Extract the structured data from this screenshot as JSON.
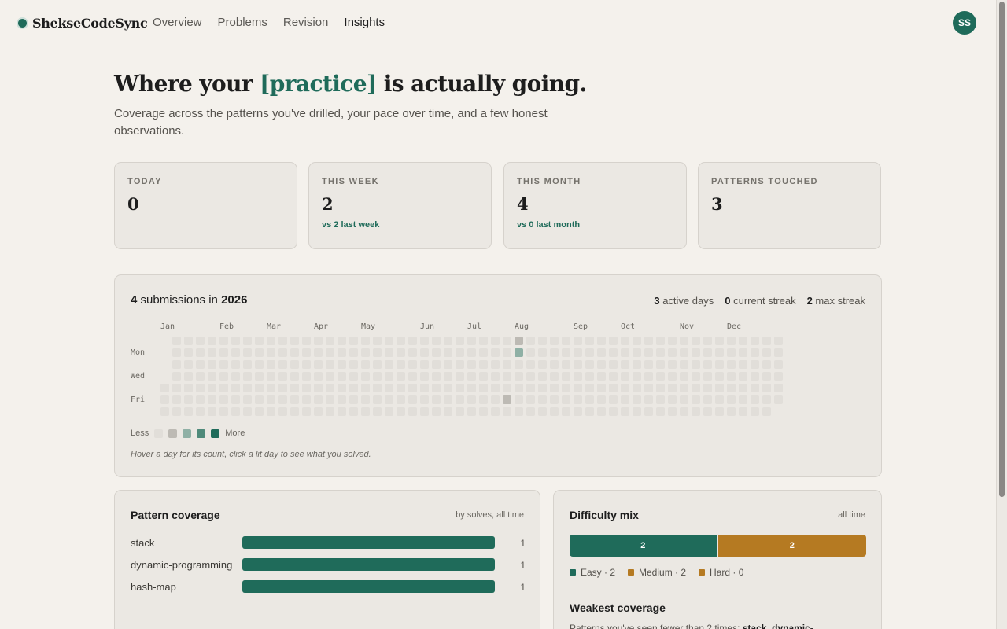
{
  "app": {
    "name": "ShekseCodeSync",
    "avatar_initials": "SS"
  },
  "nav": [
    {
      "label": "Overview",
      "active": false
    },
    {
      "label": "Problems",
      "active": false
    },
    {
      "label": "Revision",
      "active": false
    },
    {
      "label": "Insights",
      "active": true
    }
  ],
  "hero": {
    "title_before": "Where your ",
    "title_accent": "[practice]",
    "title_after": " is actually going.",
    "subtitle": "Coverage across the patterns you've drilled, your pace over time, and a few honest observations."
  },
  "stats": [
    {
      "label": "TODAY",
      "value": "0",
      "note": ""
    },
    {
      "label": "THIS WEEK",
      "value": "2",
      "note": "vs 2 last week"
    },
    {
      "label": "THIS MONTH",
      "value": "4",
      "note": "vs 0 last month"
    },
    {
      "label": "PATTERNS TOUCHED",
      "value": "3",
      "note": ""
    }
  ],
  "heatmap": {
    "count": "4",
    "title_mid": " submissions in ",
    "year": "2026",
    "active_days": "3",
    "active_days_label": " active days",
    "current_streak": "0",
    "current_streak_label": " current streak",
    "max_streak": "2",
    "max_streak_label": " max streak",
    "months": [
      "Jan",
      "Feb",
      "Mar",
      "Apr",
      "May",
      "Jun",
      "Jul",
      "Aug",
      "Sep",
      "Oct",
      "Nov",
      "Dec"
    ],
    "days": [
      "Mon",
      "Wed",
      "Fri"
    ],
    "legend_less": "Less",
    "legend_more": "More",
    "legend_colors": [
      "#e1ded9",
      "#bdbab4",
      "#8fb0a5",
      "#4f8a7a",
      "#1f6b5a"
    ],
    "active_cells": [
      {
        "week": 30,
        "day": 0,
        "level": 1
      },
      {
        "week": 30,
        "day": 1,
        "level": 2
      },
      {
        "week": 29,
        "day": 5,
        "level": 1
      }
    ],
    "hint": "Hover a day for its count, click a lit day to see what you solved."
  },
  "pattern_coverage": {
    "title": "Pattern coverage",
    "meta": "by solves, all time",
    "rows": [
      {
        "name": "stack",
        "count": "1",
        "fraction": 1.0
      },
      {
        "name": "dynamic-programming",
        "count": "1",
        "fraction": 1.0
      },
      {
        "name": "hash-map",
        "count": "1",
        "fraction": 1.0
      }
    ]
  },
  "difficulty": {
    "title": "Difficulty mix",
    "meta": "all time",
    "segments": [
      {
        "label": "2",
        "value": 2,
        "color": "#1f6b5a"
      },
      {
        "label": "2",
        "value": 2,
        "color": "#b57a22"
      }
    ],
    "legend": [
      {
        "text": "Easy · 2",
        "color": "#1f6b5a"
      },
      {
        "text": "Medium · 2",
        "color": "#b57a22"
      },
      {
        "text": "Hard · 0",
        "color": "#b57a22"
      }
    ],
    "weak_title": "Weakest coverage",
    "weak_prefix": "Patterns you've seen fewer than 2 times: ",
    "weak_list": "stack, dynamic-"
  }
}
